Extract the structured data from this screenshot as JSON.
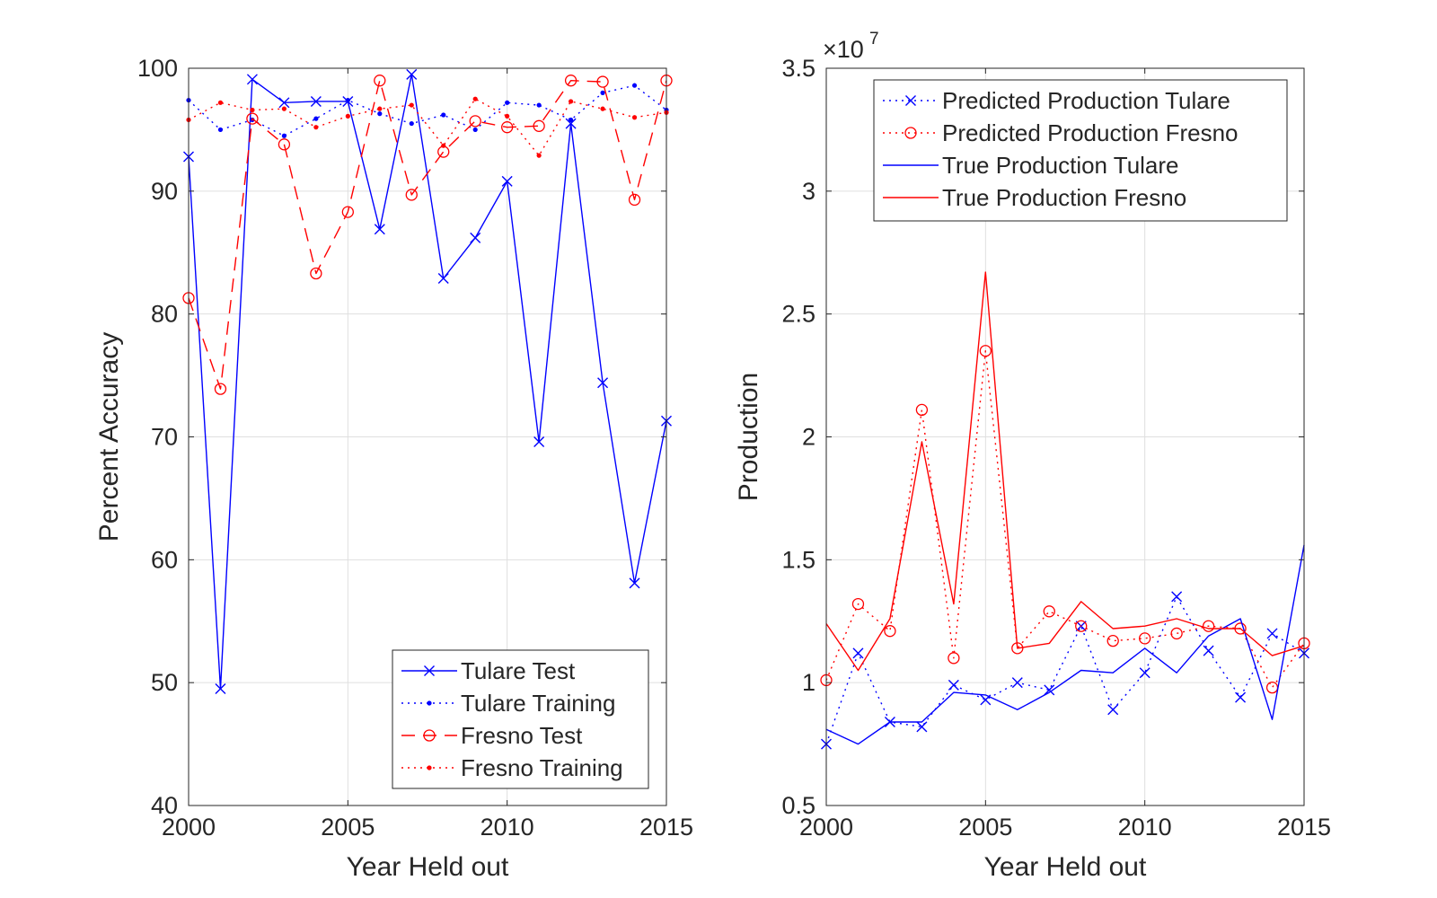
{
  "chart_data": [
    {
      "type": "line",
      "xlabel": "Year Held out",
      "ylabel": "Percent Accuracy",
      "xlim": [
        2000,
        2015
      ],
      "ylim": [
        40,
        100
      ],
      "xticks": [
        "2000",
        "2005",
        "2010",
        "2015"
      ],
      "yticks": [
        "40",
        "50",
        "60",
        "70",
        "80",
        "90",
        "100"
      ],
      "grid": true,
      "legend_position": "bottom-right",
      "x": [
        2000,
        2001,
        2002,
        2003,
        2004,
        2005,
        2006,
        2007,
        2008,
        2009,
        2010,
        2011,
        2012,
        2013,
        2014,
        2015
      ],
      "series": [
        {
          "name": "Tulare Test",
          "color": "#0000ff",
          "line": "solid",
          "marker": "x",
          "values": [
            92.8,
            49.5,
            99.1,
            97.2,
            97.3,
            97.3,
            86.9,
            99.5,
            82.9,
            86.2,
            90.8,
            69.6,
            95.5,
            74.4,
            58.1,
            71.3
          ]
        },
        {
          "name": "Tulare Training",
          "color": "#0000ff",
          "line": "dotted",
          "marker": "dot",
          "values": [
            97.4,
            95.0,
            95.8,
            94.5,
            95.9,
            97.4,
            96.3,
            95.5,
            96.2,
            95.0,
            97.2,
            97.0,
            95.8,
            98.0,
            98.6,
            96.6
          ]
        },
        {
          "name": "Fresno Test",
          "color": "#ff0000",
          "line": "dashed",
          "marker": "o",
          "values": [
            81.3,
            73.9,
            95.9,
            93.8,
            83.3,
            88.3,
            99.0,
            89.7,
            93.2,
            95.7,
            95.2,
            95.3,
            99.0,
            98.9,
            89.3,
            99.0
          ]
        },
        {
          "name": "Fresno Training",
          "color": "#ff0000",
          "line": "dotted",
          "marker": "dot",
          "values": [
            95.8,
            97.2,
            96.6,
            96.7,
            95.2,
            96.1,
            96.7,
            97.0,
            93.7,
            97.5,
            96.1,
            92.9,
            97.3,
            96.7,
            96.0,
            96.4
          ]
        }
      ]
    },
    {
      "type": "line",
      "xlabel": "Year Held out",
      "ylabel": "Production",
      "xlim": [
        2000,
        2015
      ],
      "ylim": [
        0.5,
        3.5
      ],
      "scale_label": "×10",
      "scale_exponent": "7",
      "xticks": [
        "2000",
        "2005",
        "2010",
        "2015"
      ],
      "yticks": [
        "0.5",
        "1",
        "1.5",
        "2",
        "2.5",
        "3",
        "3.5"
      ],
      "grid": true,
      "legend_position": "top-right",
      "x": [
        2000,
        2001,
        2002,
        2003,
        2004,
        2005,
        2006,
        2007,
        2008,
        2009,
        2010,
        2011,
        2012,
        2013,
        2014,
        2015
      ],
      "series": [
        {
          "name": "Predicted Production Tulare",
          "color": "#0000ff",
          "line": "dotted",
          "marker": "x",
          "values": [
            0.75,
            1.12,
            0.84,
            0.82,
            0.99,
            0.93,
            1.0,
            0.97,
            1.23,
            0.89,
            1.04,
            1.35,
            1.13,
            0.94,
            1.2,
            1.12
          ]
        },
        {
          "name": "Predicted Production Fresno",
          "color": "#ff0000",
          "line": "dotted",
          "marker": "o",
          "values": [
            1.01,
            1.32,
            1.21,
            2.11,
            1.1,
            2.35,
            1.14,
            1.29,
            1.23,
            1.17,
            1.18,
            1.2,
            1.23,
            1.22,
            0.98,
            1.16
          ]
        },
        {
          "name": "True Production Tulare",
          "color": "#0000ff",
          "line": "solid",
          "marker": "none",
          "values": [
            0.81,
            0.75,
            0.84,
            0.84,
            0.96,
            0.95,
            0.89,
            0.96,
            1.05,
            1.04,
            1.14,
            1.04,
            1.19,
            1.26,
            0.85,
            1.56
          ]
        },
        {
          "name": "True Production Fresno",
          "color": "#ff0000",
          "line": "solid",
          "marker": "none",
          "values": [
            1.24,
            1.05,
            1.26,
            1.98,
            1.32,
            2.67,
            1.14,
            1.16,
            1.33,
            1.22,
            1.23,
            1.26,
            1.22,
            1.22,
            1.11,
            1.15
          ]
        }
      ]
    }
  ]
}
